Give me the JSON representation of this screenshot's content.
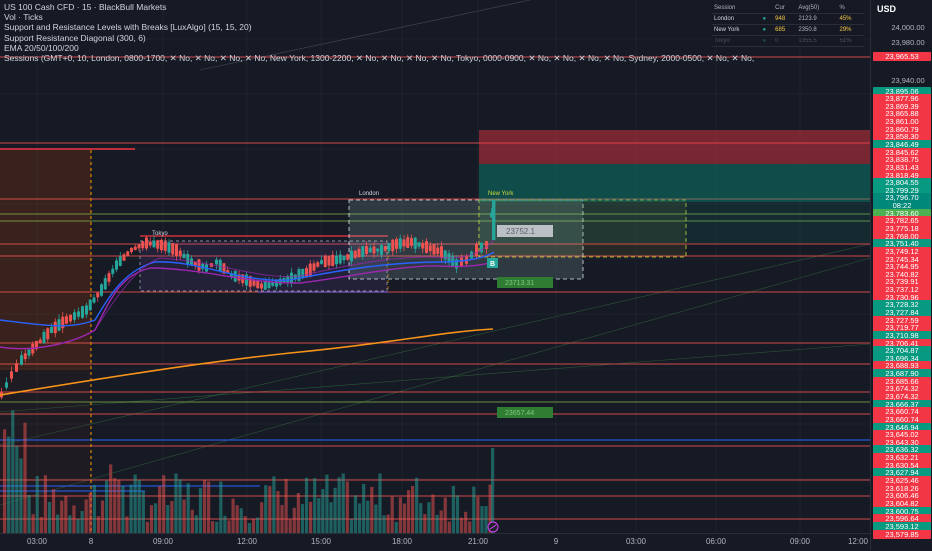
{
  "legend": {
    "title": "US 100 Cash CFD · 15 · BlackBull Markets",
    "indicators": [
      "Vol · Ticks",
      "Support and Resistance Levels with Breaks [LuxAlgo] (15, 15, 20)",
      "Support Resistance Diagonal (300, 6)",
      "EMA 20/50/100/200",
      "Sessions (GMT+0, 10, London, 0800-1700, ✕ No, ✕ No, ✕ No, ✕ No, New York, 1300-2200, ✕ No, ✕ No, ✕ No, ✕ No, Tokyo, 0000-0900, ✕ No, ✕ No, ✕ No, ✕ No, Sydney, 2000-0500, ✕ No, ✕ No,"
    ]
  },
  "sessions_table": {
    "headers": [
      "Session",
      "",
      "Cur",
      "Avg(50)",
      "%"
    ],
    "rows": [
      {
        "name": "London",
        "dot": "●",
        "cur": "948",
        "avg": "2123.9",
        "pct": "45%"
      },
      {
        "name": "New York",
        "dot": "●",
        "cur": "685",
        "avg": "2350.8",
        "pct": "29%"
      },
      {
        "name": "Tokyo",
        "dot": "●",
        "cur": "0",
        "avg": "1355.5",
        "pct": "51%"
      }
    ]
  },
  "session_labels": {
    "tokyo": "Tokyo",
    "london": "London",
    "newyork": "New York"
  },
  "markers": {
    "b": "B",
    "price_box": "23752.1",
    "green_box_1": "23713.31",
    "green_box_2": "23657.44"
  },
  "price_axis": {
    "currency": "USD",
    "ticks": [
      "24,000.00",
      "23,980.00",
      "23,940.00"
    ],
    "labels": [
      {
        "v": "23,965.53",
        "c": "red"
      },
      {
        "v": "23,895.06",
        "c": "green"
      },
      {
        "v": "23,877.96",
        "c": "red"
      },
      {
        "v": "23,869.39",
        "c": "red"
      },
      {
        "v": "23,865.88",
        "c": "red"
      },
      {
        "v": "23,861.00",
        "c": "red"
      },
      {
        "v": "23,860.79",
        "c": "red"
      },
      {
        "v": "23,858.30",
        "c": "red"
      },
      {
        "v": "23,846.49",
        "c": "green"
      },
      {
        "v": "23,845.62",
        "c": "red"
      },
      {
        "v": "23,838.75",
        "c": "red"
      },
      {
        "v": "23,831.43",
        "c": "red"
      },
      {
        "v": "23,818.49",
        "c": "red"
      },
      {
        "v": "23,804.55",
        "c": "green"
      },
      {
        "v": "23,799.29",
        "c": "green"
      },
      {
        "v": "23,796.70",
        "c": "teal"
      },
      {
        "v": "08:22",
        "c": "teal"
      },
      {
        "v": "23,783.60",
        "c": "lime"
      },
      {
        "v": "23,782.65",
        "c": "red"
      },
      {
        "v": "23,775.18",
        "c": "red"
      },
      {
        "v": "23,768.00",
        "c": "red"
      },
      {
        "v": "23,751.40",
        "c": "green"
      },
      {
        "v": "23,749.12",
        "c": "red"
      },
      {
        "v": "23,745.34",
        "c": "red"
      },
      {
        "v": "23,744.95",
        "c": "red"
      },
      {
        "v": "23,740.82",
        "c": "red"
      },
      {
        "v": "23,739.91",
        "c": "red"
      },
      {
        "v": "23,737.12",
        "c": "red"
      },
      {
        "v": "23,730.96",
        "c": "red"
      },
      {
        "v": "23,728.32",
        "c": "green"
      },
      {
        "v": "23,727.84",
        "c": "green"
      },
      {
        "v": "23,727.59",
        "c": "red"
      },
      {
        "v": "23,719.77",
        "c": "red"
      },
      {
        "v": "23,710.98",
        "c": "green"
      },
      {
        "v": "23,706.41",
        "c": "red"
      },
      {
        "v": "23,704.87",
        "c": "green"
      },
      {
        "v": "23,696.34",
        "c": "green"
      },
      {
        "v": "23,688.93",
        "c": "red"
      },
      {
        "v": "23,687.90",
        "c": "green"
      },
      {
        "v": "23,685.66",
        "c": "red"
      },
      {
        "v": "23,674.32",
        "c": "red"
      },
      {
        "v": "23,674.32",
        "c": "red"
      },
      {
        "v": "23,666.37",
        "c": "green"
      },
      {
        "v": "23,660.74",
        "c": "red"
      },
      {
        "v": "23,660.74",
        "c": "red"
      },
      {
        "v": "23,646.94",
        "c": "green"
      },
      {
        "v": "23,645.02",
        "c": "red"
      },
      {
        "v": "23,643.30",
        "c": "red"
      },
      {
        "v": "23,636.32",
        "c": "green"
      },
      {
        "v": "23,632.21",
        "c": "red"
      },
      {
        "v": "23,630.54",
        "c": "red"
      },
      {
        "v": "23,627.94",
        "c": "green"
      },
      {
        "v": "23,625.46",
        "c": "red"
      },
      {
        "v": "23,618.26",
        "c": "red"
      },
      {
        "v": "23,606.46",
        "c": "red"
      },
      {
        "v": "23,604.82",
        "c": "red"
      },
      {
        "v": "23,600.75",
        "c": "green"
      },
      {
        "v": "23,596.64",
        "c": "red"
      },
      {
        "v": "23,593.12",
        "c": "green"
      },
      {
        "v": "23,579.85",
        "c": "red"
      }
    ]
  },
  "time_axis": [
    "03:00",
    "8",
    "09:00",
    "12:00",
    "15:00",
    "18:00",
    "21:00",
    "9",
    "03:00",
    "06:00",
    "09:00",
    "12:00"
  ],
  "colors": {
    "up": "#26a69a",
    "down": "#ef5350",
    "ema_orange": "#f7931a",
    "ema_blue": "#2962ff",
    "ema_purple": "#9c27b0"
  }
}
